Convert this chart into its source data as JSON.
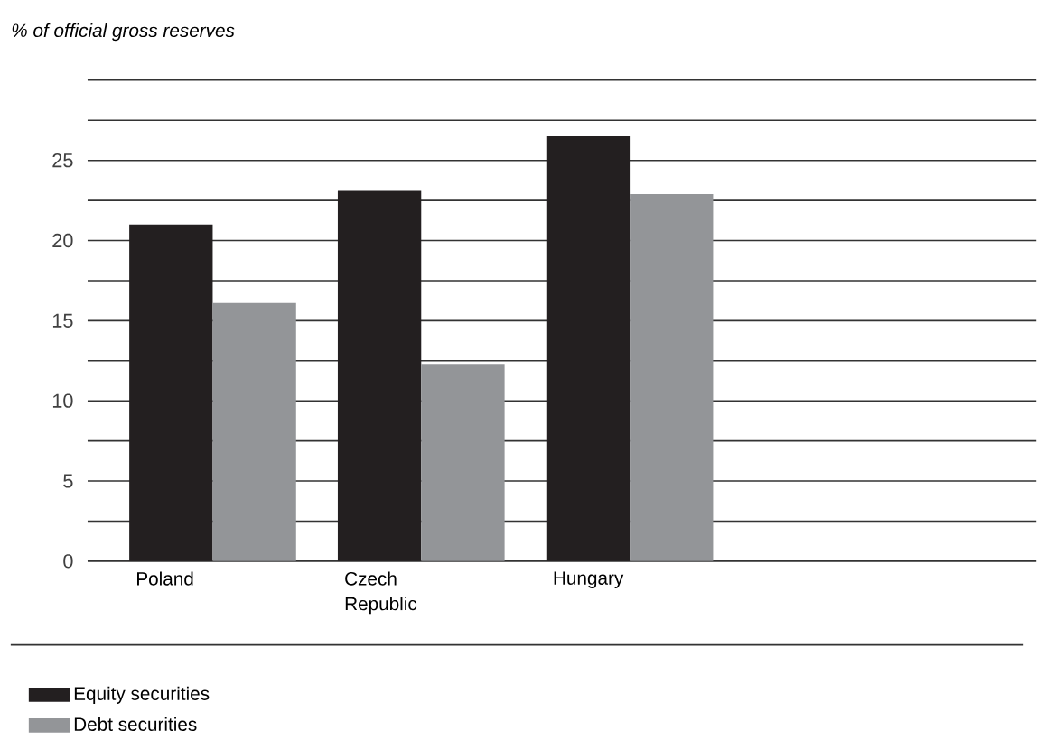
{
  "chart_data": {
    "type": "bar",
    "title": "*% of official gross reserves*",
    "categories": [
      "Poland",
      "Czech Republic",
      "Hungary"
    ],
    "series": [
      {
        "name": "Equity securities",
        "color": "#231f20",
        "values": [
          21,
          23.1,
          26.5
        ]
      },
      {
        "name": "Debt securities",
        "color": "#939598",
        "values": [
          16.1,
          12.3,
          22.9
        ]
      }
    ],
    "ylim": [
      0,
      30
    ],
    "yticks": [
      0,
      {
        "value": 2.5,
        "label": null
      },
      5,
      {
        "value": 7.5,
        "label": null
      },
      10,
      {
        "value": 12.5,
        "label": null
      },
      15,
      {
        "value": 17.5,
        "label": null
      },
      20,
      {
        "value": 22.5,
        "label": null
      },
      25,
      {
        "value": 27.5,
        "label": null
      },
      {
        "value": 30,
        "label": null
      }
    ],
    "grid": "y",
    "legend": "bottom left"
  }
}
